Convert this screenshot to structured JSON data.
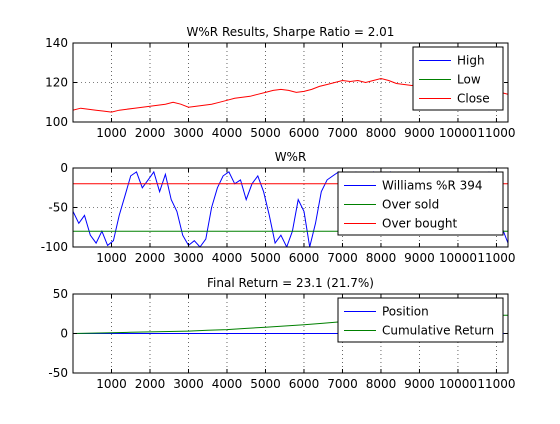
{
  "chart_data": [
    {
      "type": "line",
      "title": "W%R Results, Sharpe Ratio = 2.01",
      "xlim": [
        0,
        11300
      ],
      "ylim": [
        100,
        140
      ],
      "xticks": [
        1000,
        2000,
        3000,
        4000,
        5000,
        6000,
        7000,
        8000,
        9000,
        10000,
        11000
      ],
      "yticks": [
        100,
        120,
        140
      ],
      "grid": true,
      "legend_position": "top-right",
      "series": [
        {
          "name": "High",
          "color": "#0000ff",
          "x": [],
          "y": []
        },
        {
          "name": "Low",
          "color": "#008000",
          "x": [],
          "y": []
        },
        {
          "name": "Close",
          "color": "#ff0000",
          "x": [
            0,
            200,
            400,
            600,
            800,
            1000,
            1200,
            1400,
            1600,
            1800,
            2000,
            2200,
            2400,
            2600,
            2800,
            3000,
            3200,
            3400,
            3600,
            3800,
            4000,
            4200,
            4400,
            4600,
            4800,
            5000,
            5200,
            5400,
            5600,
            5800,
            6000,
            6200,
            6400,
            6600,
            6800,
            7000,
            7200,
            7400,
            7600,
            7800,
            8000,
            8200,
            8400,
            8600,
            8800,
            9000,
            9200,
            9400,
            9600,
            9800,
            10000,
            10200,
            10400,
            10600,
            10800,
            11000,
            11300
          ],
          "y": [
            106,
            107,
            106.5,
            106,
            105.5,
            105,
            106,
            106.5,
            107,
            107.5,
            108,
            108.5,
            109,
            110,
            109,
            107.5,
            108,
            108.5,
            109,
            110,
            111,
            112,
            112.5,
            113,
            114,
            115,
            116,
            116.5,
            116,
            115,
            115.5,
            116.5,
            118,
            119,
            120,
            121,
            120.5,
            121,
            120,
            121,
            122,
            121,
            119.5,
            119,
            118.5,
            119,
            118.5,
            119,
            118.5,
            117.5,
            116.5,
            116,
            116.5,
            117,
            116.5,
            115.5,
            114
          ]
        }
      ]
    },
    {
      "type": "line",
      "title": "W%R",
      "xlim": [
        0,
        11300
      ],
      "ylim": [
        -100,
        0
      ],
      "xticks": [
        1000,
        2000,
        3000,
        4000,
        5000,
        6000,
        7000,
        8000,
        9000,
        10000,
        11000
      ],
      "yticks": [
        -100,
        -50,
        0
      ],
      "grid": true,
      "legend_position": "top-right",
      "series": [
        {
          "name": "Williams %R 394",
          "color": "#0000ff",
          "x": [
            0,
            150,
            300,
            450,
            600,
            750,
            900,
            1050,
            1200,
            1350,
            1500,
            1650,
            1800,
            1950,
            2100,
            2250,
            2400,
            2550,
            2700,
            2850,
            3000,
            3150,
            3300,
            3450,
            3600,
            3750,
            3900,
            4050,
            4200,
            4350,
            4500,
            4650,
            4800,
            4950,
            5100,
            5250,
            5400,
            5550,
            5700,
            5850,
            6000,
            6150,
            6300,
            6450,
            6600,
            6750,
            6900,
            7050,
            7200,
            7350,
            7500,
            7650,
            7800,
            7950,
            8100,
            8250,
            8400,
            8550,
            8700,
            8850,
            9000,
            9150,
            9300,
            9450,
            9600,
            9750,
            9900,
            10050,
            10200,
            10350,
            10500,
            10650,
            10800,
            10950,
            11100,
            11300
          ],
          "y": [
            -55,
            -70,
            -60,
            -85,
            -95,
            -80,
            -98,
            -92,
            -60,
            -35,
            -10,
            -5,
            -25,
            -15,
            -5,
            -30,
            -8,
            -40,
            -55,
            -85,
            -98,
            -92,
            -100,
            -90,
            -50,
            -25,
            -10,
            -5,
            -20,
            -15,
            -40,
            -20,
            -10,
            -30,
            -60,
            -95,
            -85,
            -100,
            -80,
            -40,
            -55,
            -100,
            -70,
            -30,
            -15,
            -10,
            -5,
            -25,
            -10,
            -5,
            -15,
            -10,
            -5,
            -30,
            -10,
            -5,
            -25,
            -55,
            -70,
            -40,
            -20,
            -10,
            -30,
            -15,
            -40,
            -20,
            -35,
            -25,
            -60,
            -40,
            -15,
            -8,
            -5,
            -25,
            -70,
            -95
          ]
        },
        {
          "name": "Over sold",
          "color": "#008000",
          "x": [
            0,
            11300
          ],
          "y": [
            -80,
            -80
          ]
        },
        {
          "name": "Over bought",
          "color": "#ff0000",
          "x": [
            0,
            11300
          ],
          "y": [
            -20,
            -20
          ]
        }
      ]
    },
    {
      "type": "line",
      "title": "Final Return = 23.1 (21.7%)",
      "xlim": [
        0,
        11300
      ],
      "ylim": [
        -50,
        50
      ],
      "xticks": [
        1000,
        2000,
        3000,
        4000,
        5000,
        6000,
        7000,
        8000,
        9000,
        10000,
        11000
      ],
      "yticks": [
        -50,
        0,
        50
      ],
      "grid": true,
      "legend_position": "top-right",
      "series": [
        {
          "name": "Position",
          "color": "#0000ff",
          "x": [
            0,
            1000,
            2500,
            3000,
            4000,
            5000,
            6000,
            7000,
            8000,
            9000,
            10000,
            11300
          ],
          "y": [
            0,
            0,
            0,
            0,
            0,
            0,
            0,
            0,
            0,
            0,
            0,
            0
          ]
        },
        {
          "name": "Cumulative Return",
          "color": "#008000",
          "x": [
            0,
            500,
            1000,
            1500,
            2000,
            2500,
            3000,
            3500,
            4000,
            4500,
            5000,
            5500,
            6000,
            6500,
            7000,
            7500,
            8000,
            8500,
            9000,
            9500,
            10000,
            10500,
            11000,
            11300
          ],
          "y": [
            0,
            0.5,
            1,
            1.5,
            2,
            2.5,
            3,
            4,
            5,
            6.5,
            8,
            9.5,
            11,
            13,
            15,
            16,
            17,
            18,
            19,
            20,
            21,
            22,
            23,
            23.1
          ]
        }
      ]
    }
  ]
}
